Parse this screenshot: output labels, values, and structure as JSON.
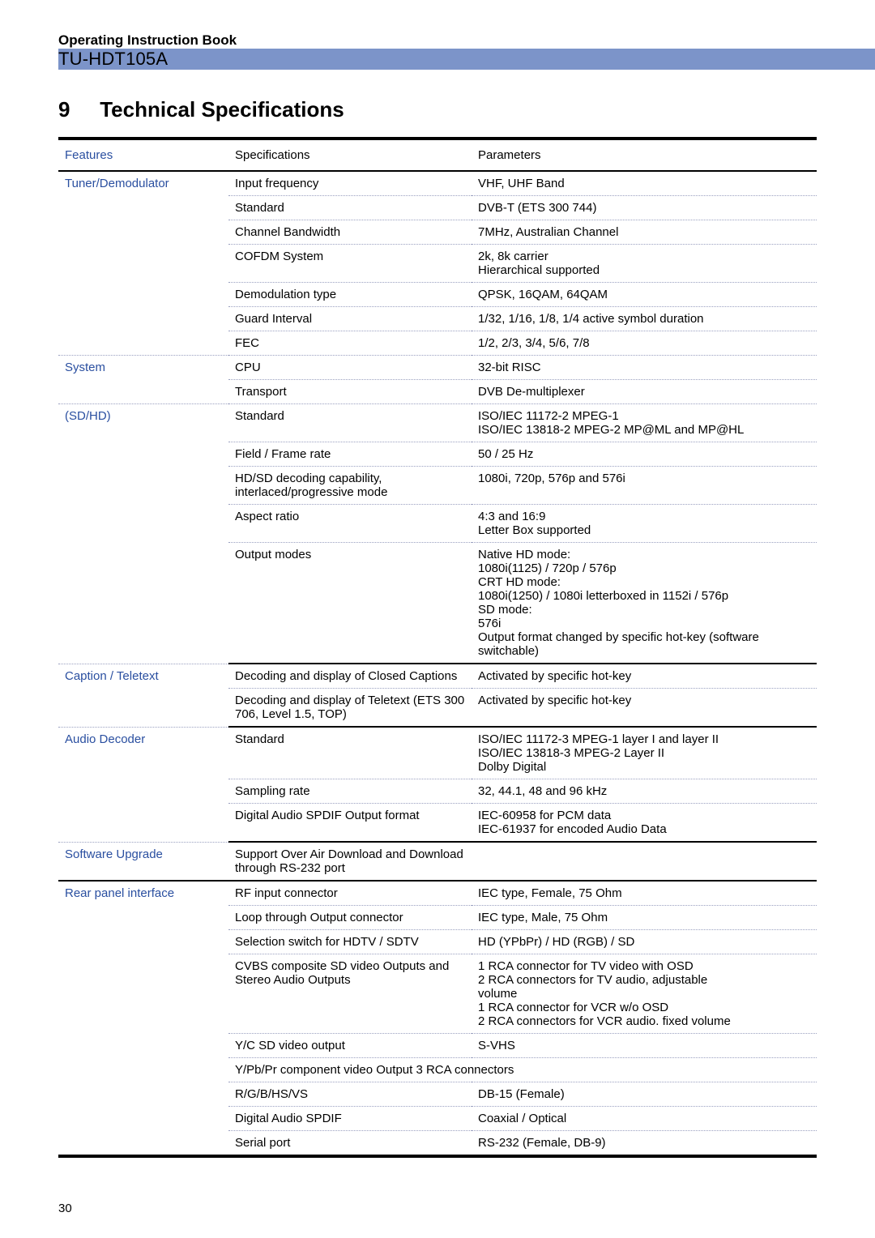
{
  "header": {
    "book_title": "Operating Instruction Book",
    "model": "TU-HDT105A"
  },
  "section": {
    "number": "9",
    "title": "Technical Specifications"
  },
  "table": {
    "head": {
      "c1": "Features",
      "c2": "Specifications",
      "c3": "Parameters"
    },
    "groups": [
      {
        "feature": "Tuner/Demodulator",
        "rows": [
          {
            "spec": "Input frequency",
            "param": "VHF, UHF Band"
          },
          {
            "spec": "Standard",
            "param": "DVB-T (ETS 300 744)"
          },
          {
            "spec": "Channel Bandwidth",
            "param": "7MHz, Australian Channel"
          },
          {
            "spec": "COFDM System",
            "param": "2k, 8k carrier\nHierarchical supported"
          },
          {
            "spec": "Demodulation type",
            "param": "QPSK, 16QAM, 64QAM"
          },
          {
            "spec": "Guard Interval",
            "param": "1/32, 1/16, 1/8, 1/4 active symbol duration"
          },
          {
            "spec": "FEC",
            "param": "1/2, 2/3, 3/4, 5/6, 7/8"
          }
        ]
      },
      {
        "feature": "System",
        "rows": [
          {
            "spec": "CPU",
            "param": "32-bit RISC"
          },
          {
            "spec": "Transport",
            "param": "DVB De-multiplexer"
          }
        ]
      },
      {
        "feature": "(SD/HD)",
        "rows": [
          {
            "spec": "Standard",
            "param": "ISO/IEC 11172-2 MPEG-1\nISO/IEC 13818-2 MPEG-2 MP@ML and MP@HL"
          },
          {
            "spec": "Field / Frame rate",
            "param": "50 / 25 Hz"
          },
          {
            "spec": "HD/SD decoding capability, interlaced/progressive mode",
            "param": "1080i, 720p, 576p and 576i"
          },
          {
            "spec": "Aspect ratio",
            "param": "4:3 and 16:9\nLetter Box supported"
          },
          {
            "spec": "Output modes",
            "param": "Native HD mode:\n1080i(1125) / 720p / 576p\nCRT HD mode:\n1080i(1250) / 1080i letterboxed in 1152i / 576p\nSD mode:\n576i\nOutput format changed by specific hot-key (software switchable)"
          }
        ]
      },
      {
        "feature": "Caption / Teletext",
        "rows": [
          {
            "spec": "Decoding and display of Closed Captions",
            "param": "Activated by specific hot-key"
          },
          {
            "spec": "Decoding and display of Teletext (ETS 300 706, Level 1.5, TOP)",
            "param": "Activated by specific hot-key"
          }
        ]
      },
      {
        "feature": "Audio Decoder",
        "rows": [
          {
            "spec": "Standard",
            "param": "ISO/IEC 11172-3 MPEG-1 layer I and layer II\nISO/IEC 13818-3 MPEG-2 Layer II\nDolby Digital"
          },
          {
            "spec": "Sampling rate",
            "param": "32, 44.1, 48 and 96 kHz"
          },
          {
            "spec": "Digital Audio SPDIF Output format",
            "param": "IEC-60958 for PCM data\nIEC-61937 for encoded Audio Data"
          }
        ]
      },
      {
        "feature": "Software Upgrade",
        "rows": [
          {
            "spec": "Support Over Air Download and Download through RS-232 port",
            "param": ""
          }
        ]
      },
      {
        "feature": "Rear panel interface",
        "rows": [
          {
            "spec": "RF input connector",
            "param": "IEC type, Female, 75 Ohm"
          },
          {
            "spec": "Loop through Output connector",
            "param": "IEC type, Male, 75 Ohm"
          },
          {
            "spec": "Selection switch for HDTV / SDTV",
            "param": "HD (YPbPr) / HD (RGB) / SD"
          },
          {
            "spec": "CVBS composite SD video Outputs and\nStereo Audio Outputs",
            "param": "1 RCA connector for TV video with OSD\n2 RCA connectors for TV audio, adjustable\n   volume\n1 RCA connector for VCR w/o OSD\n2 RCA connectors for VCR audio. fixed volume"
          },
          {
            "spec": "Y/C SD video output",
            "param": "S-VHS"
          },
          {
            "spec": "Y/Pb/Pr component video Output",
            "param": "3 RCA connectors",
            "merge_spec_param": true
          },
          {
            "spec": "R/G/B/HS/VS",
            "param": "DB-15 (Female)"
          },
          {
            "spec": "Digital Audio SPDIF",
            "param": "Coaxial / Optical"
          },
          {
            "spec": "Serial port",
            "param": "RS-232 (Female, DB-9)"
          }
        ]
      }
    ]
  },
  "page_number": "30",
  "colors": {
    "feature_text": "#2a4fa0",
    "dotted_border": "#9aa0c0",
    "blue_bar": "#7c94c9"
  }
}
